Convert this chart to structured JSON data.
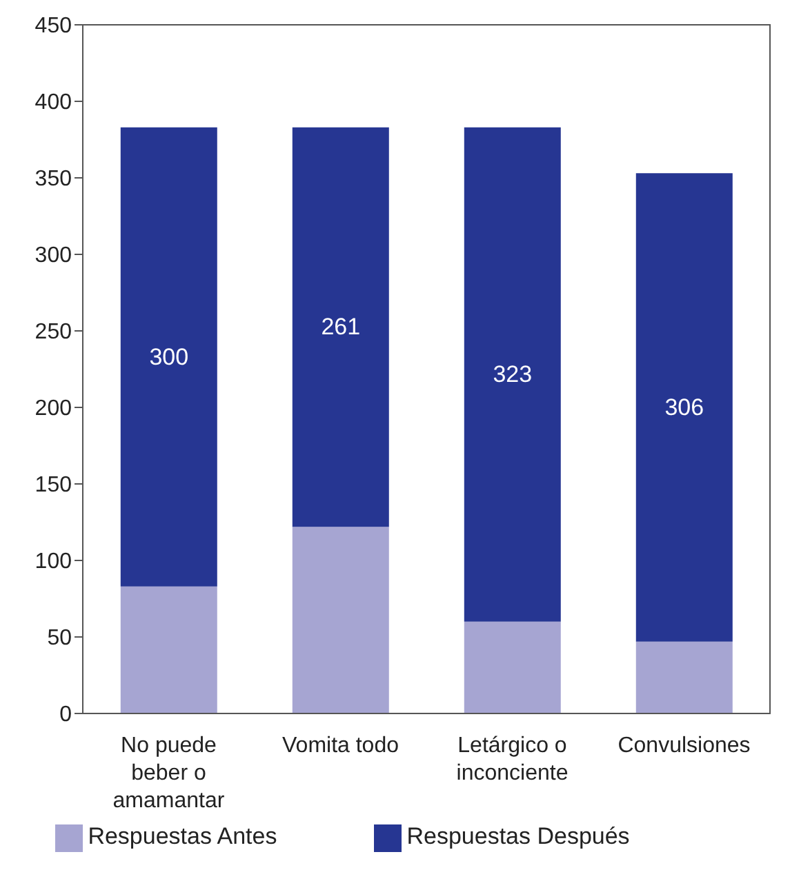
{
  "chart_data": {
    "type": "bar",
    "stacked": true,
    "categories": [
      "No puede beber o amamantar",
      "Vomita todo",
      "Letárgico o inconciente",
      "Convulsiones"
    ],
    "series": [
      {
        "name": "Respuestas Antes",
        "color": "#a6a5d2",
        "values": [
          83,
          122,
          60,
          47
        ]
      },
      {
        "name": "Respuestas Después",
        "color": "#263692",
        "values": [
          300,
          261,
          323,
          306
        ],
        "value_labels": [
          "300",
          "261",
          "323",
          "306"
        ]
      }
    ],
    "ylim": [
      0,
      450
    ],
    "yticks": [
      0,
      50,
      100,
      150,
      200,
      250,
      300,
      350,
      400,
      450
    ],
    "grid": false,
    "legend": "bottom"
  }
}
